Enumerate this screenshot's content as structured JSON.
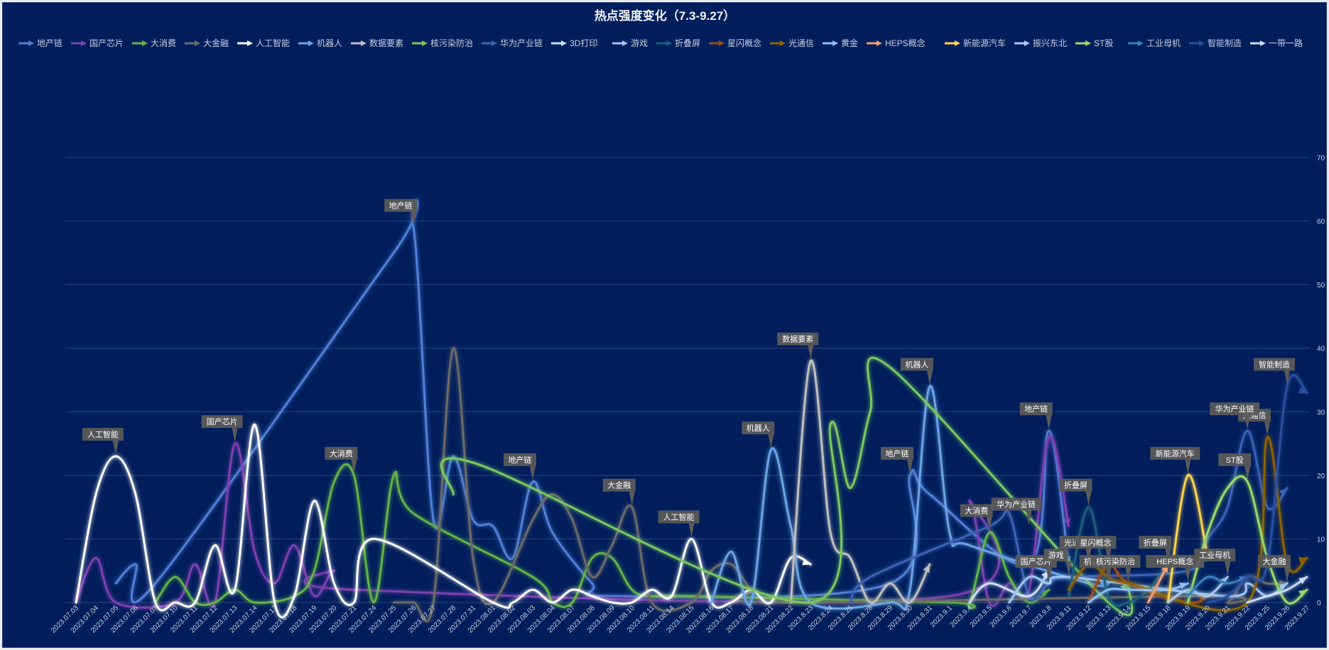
{
  "chart_data": {
    "type": "line",
    "title": "热点强度变化（7.3-9.27）",
    "ylim": [
      0,
      70
    ],
    "y_ticks": [
      0,
      10,
      20,
      30,
      40,
      50,
      60,
      70
    ],
    "y_axis_side": "right",
    "grid": "horizontal",
    "legend_position": "top",
    "categories": [
      "2023.07.03",
      "2023.07.04",
      "2023.07.05",
      "2023.07.06",
      "2023.07.07",
      "2023.07.10",
      "2023.07.11",
      "2023.07.12",
      "2023.07.13",
      "2023.07.14",
      "2023.07.17",
      "2023.07.18",
      "2023.07.19",
      "2023.07.20",
      "2023.07.21",
      "2023.07.24",
      "2023.07.25",
      "2023.07.26",
      "2023.07.27",
      "2023.07.28",
      "2023.07.31",
      "2023.08.01",
      "2023.08.02",
      "2023.08.03",
      "2023.08.04",
      "2023.08.07",
      "2023.08.08",
      "2023.08.09",
      "2023.08.10",
      "2023.08.11",
      "2023.08.14",
      "2023.08.15",
      "2023.08.16",
      "2023.08.17",
      "2023.08.18",
      "2023.08.21",
      "2023.08.22",
      "2023.8.23",
      "2023.8.24",
      "2023.8.25",
      "2023.8.28",
      "2023.8.29",
      "2023.8.30",
      "2023.8.31",
      "2023.9.1",
      "2023.9.4",
      "2023.9.5",
      "2023.9.6",
      "2023.9.7",
      "2023.9.8",
      "2023.9.11",
      "2023.9.12",
      "2023.9.13",
      "2023.9.14",
      "2023.9.15",
      "2023.9.18",
      "2023.9.19",
      "2023.9.20",
      "2023.9.21",
      "2023.9.22",
      "2023.9.25",
      "2023.9.26",
      "2023.9.27"
    ],
    "series": [
      {
        "name": "地产链",
        "color": "#4f7fd6",
        "points": [
          [
            2,
            3
          ],
          [
            3,
            6
          ],
          [
            4,
            3
          ],
          [
            16,
            55
          ],
          [
            17,
            59
          ],
          [
            18,
            13
          ],
          [
            19,
            23
          ],
          [
            20,
            13
          ],
          [
            21,
            12
          ],
          [
            22,
            7
          ],
          [
            23,
            19
          ],
          [
            24,
            11
          ],
          [
            26,
            3
          ],
          [
            27,
            1
          ],
          [
            41,
            3
          ],
          [
            42,
            20
          ],
          [
            43,
            17
          ],
          [
            48,
            6
          ],
          [
            49,
            27
          ],
          [
            50,
            6
          ]
        ]
      },
      {
        "name": "国产芯片",
        "color": "#7b3fb0",
        "points": [
          [
            0,
            0
          ],
          [
            1,
            7
          ],
          [
            2,
            0
          ],
          [
            5,
            0
          ],
          [
            6,
            6
          ],
          [
            7,
            0
          ],
          [
            8,
            25
          ],
          [
            9,
            8
          ],
          [
            10,
            3
          ],
          [
            11,
            9
          ],
          [
            12,
            1
          ],
          [
            13,
            5
          ],
          [
            14,
            2
          ],
          [
            44,
            1
          ],
          [
            45,
            16
          ],
          [
            46,
            0
          ],
          [
            47,
            3
          ],
          [
            48,
            2
          ],
          [
            49,
            26
          ],
          [
            50,
            12
          ]
        ]
      },
      {
        "name": "大消费",
        "color": "#62b246",
        "points": [
          [
            4,
            0
          ],
          [
            5,
            4
          ],
          [
            6,
            0
          ],
          [
            7,
            0
          ],
          [
            8,
            2
          ],
          [
            9,
            0
          ],
          [
            11,
            1
          ],
          [
            12,
            5
          ],
          [
            13,
            19
          ],
          [
            14,
            20
          ],
          [
            15,
            0
          ],
          [
            16,
            20
          ],
          [
            17,
            14
          ],
          [
            23,
            4
          ],
          [
            24,
            0
          ],
          [
            25,
            0
          ],
          [
            26,
            7
          ],
          [
            27,
            7
          ],
          [
            28,
            2
          ],
          [
            29,
            1
          ],
          [
            31,
            1
          ],
          [
            44,
            0
          ],
          [
            45,
            0
          ],
          [
            46,
            11
          ],
          [
            47,
            4
          ],
          [
            48,
            0
          ],
          [
            49,
            2
          ]
        ]
      },
      {
        "name": "大金融",
        "color": "#6b6b6b",
        "points": [
          [
            16,
            0
          ],
          [
            17,
            0
          ],
          [
            18,
            0
          ],
          [
            19,
            40
          ],
          [
            20,
            7
          ],
          [
            21,
            0
          ],
          [
            23,
            13
          ],
          [
            24,
            17
          ],
          [
            25,
            13
          ],
          [
            26,
            4
          ],
          [
            27,
            9
          ],
          [
            28,
            15
          ],
          [
            29,
            0
          ],
          [
            31,
            0
          ],
          [
            32,
            5
          ],
          [
            33,
            6
          ],
          [
            34,
            2
          ],
          [
            35,
            0
          ],
          [
            57,
            1
          ],
          [
            58,
            0
          ],
          [
            59,
            4
          ],
          [
            60,
            3
          ],
          [
            61,
            3
          ]
        ]
      },
      {
        "name": "人工智能",
        "color": "#ffffff",
        "points": [
          [
            0,
            0
          ],
          [
            1,
            17
          ],
          [
            2,
            23
          ],
          [
            3,
            17
          ],
          [
            4,
            0
          ],
          [
            5,
            0
          ],
          [
            6,
            0
          ],
          [
            7,
            9
          ],
          [
            8,
            2
          ],
          [
            9,
            28
          ],
          [
            10,
            0
          ],
          [
            11,
            1
          ],
          [
            12,
            16
          ],
          [
            13,
            3
          ],
          [
            14,
            0
          ],
          [
            15,
            10
          ],
          [
            21,
            0
          ],
          [
            22,
            0
          ],
          [
            23,
            2
          ],
          [
            24,
            0
          ],
          [
            25,
            2
          ],
          [
            26,
            1
          ],
          [
            27,
            0
          ],
          [
            28,
            0
          ],
          [
            29,
            2
          ],
          [
            30,
            1
          ],
          [
            31,
            10
          ],
          [
            32,
            0
          ],
          [
            33,
            0
          ],
          [
            34,
            2
          ],
          [
            35,
            0
          ],
          [
            36,
            7
          ],
          [
            37,
            6
          ]
        ]
      },
      {
        "name": "机器人",
        "color": "#6aa4e6",
        "points": [
          [
            32,
            0
          ],
          [
            33,
            8
          ],
          [
            34,
            0
          ],
          [
            35,
            24
          ],
          [
            36,
            12
          ],
          [
            37,
            0
          ],
          [
            41,
            0
          ],
          [
            42,
            2
          ],
          [
            43,
            34
          ],
          [
            44,
            11
          ],
          [
            45,
            9
          ],
          [
            51,
            3
          ],
          [
            52,
            3
          ]
        ]
      },
      {
        "name": "数据要素",
        "color": "#bfbfbf",
        "points": [
          [
            36,
            0
          ],
          [
            37,
            38
          ],
          [
            38,
            11
          ],
          [
            39,
            7
          ],
          [
            40,
            0
          ],
          [
            41,
            3
          ],
          [
            42,
            0
          ],
          [
            43,
            6
          ]
        ]
      },
      {
        "name": "核污染防治",
        "color": "#7ac860",
        "points": [
          [
            19,
            17
          ],
          [
            20,
            22
          ],
          [
            37,
            0
          ],
          [
            38,
            28
          ],
          [
            39,
            18
          ],
          [
            40,
            30
          ],
          [
            41,
            37
          ],
          [
            52,
            0
          ],
          [
            53,
            3
          ]
        ]
      },
      {
        "name": "华为产业链",
        "color": "#3a62b4",
        "points": [
          [
            39,
            0
          ],
          [
            40,
            4
          ],
          [
            46,
            12
          ],
          [
            47,
            14
          ],
          [
            48,
            1
          ],
          [
            49,
            3
          ],
          [
            50,
            4
          ],
          [
            56,
            5
          ],
          [
            57,
            10
          ],
          [
            58,
            15
          ],
          [
            59,
            27
          ],
          [
            60,
            15
          ],
          [
            61,
            18
          ]
        ]
      },
      {
        "name": "3D打印",
        "color": "#cde0ff",
        "points": [
          [
            45,
            0
          ],
          [
            46,
            3
          ],
          [
            48,
            1
          ],
          [
            49,
            5
          ]
        ]
      },
      {
        "name": "游戏",
        "color": "#9fc7f3",
        "points": [
          [
            47,
            0
          ],
          [
            48,
            4
          ],
          [
            49,
            3
          ],
          [
            50,
            4
          ],
          [
            58,
            1
          ],
          [
            59,
            3
          ],
          [
            60,
            1
          ],
          [
            61,
            3
          ]
        ]
      },
      {
        "name": "折叠屏",
        "color": "#1c5f7a",
        "points": [
          [
            50,
            1
          ],
          [
            51,
            15
          ],
          [
            52,
            1
          ],
          [
            53,
            0
          ],
          [
            54,
            2
          ],
          [
            55,
            6
          ]
        ]
      },
      {
        "name": "星闪概念",
        "color": "#9a4e16",
        "points": [
          [
            51,
            0
          ],
          [
            52,
            6
          ],
          [
            53,
            3
          ],
          [
            56,
            0
          ],
          [
            57,
            1
          ]
        ]
      },
      {
        "name": "光通信",
        "color": "#8c6200",
        "points": [
          [
            50,
            2
          ],
          [
            51,
            6
          ],
          [
            52,
            4
          ],
          [
            53,
            3
          ],
          [
            59,
            0
          ],
          [
            60,
            26
          ],
          [
            61,
            6
          ],
          [
            62,
            7
          ]
        ]
      },
      {
        "name": "黄金",
        "color": "#8fbff4",
        "points": [
          [
            51,
            0
          ],
          [
            52,
            2
          ],
          [
            53,
            2
          ],
          [
            55,
            2
          ],
          [
            56,
            3
          ]
        ]
      },
      {
        "name": "HEPS概念",
        "color": "#f0a070",
        "points": [
          [
            54,
            0
          ],
          [
            55,
            6
          ]
        ]
      },
      {
        "name": "新能源汽车",
        "color": "#ffd24d",
        "points": [
          [
            55,
            0
          ],
          [
            56,
            20
          ],
          [
            57,
            7
          ]
        ]
      },
      {
        "name": "振兴东北",
        "color": "#a8cbf0",
        "points": [
          [
            55,
            0
          ],
          [
            56,
            2
          ],
          [
            57,
            1
          ],
          [
            58,
            4
          ]
        ]
      },
      {
        "name": "ST股",
        "color": "#9ad86a",
        "points": [
          [
            56,
            0
          ],
          [
            57,
            11
          ],
          [
            58,
            18
          ],
          [
            59,
            19
          ],
          [
            60,
            7
          ],
          [
            61,
            0
          ],
          [
            62,
            2
          ]
        ]
      },
      {
        "name": "工业母机",
        "color": "#3a7fc0",
        "points": [
          [
            56,
            1
          ],
          [
            57,
            4
          ],
          [
            58,
            3
          ],
          [
            59,
            4
          ]
        ]
      },
      {
        "name": "智能制造",
        "color": "#2b4fa0",
        "points": [
          [
            57,
            0
          ],
          [
            58,
            1
          ],
          [
            59,
            4
          ],
          [
            60,
            6
          ],
          [
            61,
            34
          ],
          [
            62,
            33
          ]
        ]
      },
      {
        "name": "一带一路",
        "color": "#c8dcf5",
        "points": [
          [
            59,
            0
          ],
          [
            60,
            1
          ],
          [
            61,
            2
          ],
          [
            62,
            4
          ]
        ]
      }
    ],
    "annotations": [
      {
        "text": "人工智能",
        "x": 2,
        "y": 23
      },
      {
        "text": "国产芯片",
        "x": 8,
        "y": 25
      },
      {
        "text": "大消费",
        "x": 14,
        "y": 20
      },
      {
        "text": "地产链",
        "x": 17,
        "y": 59
      },
      {
        "text": "地产链",
        "x": 23,
        "y": 19
      },
      {
        "text": "大金融",
        "x": 28,
        "y": 15
      },
      {
        "text": "人工智能",
        "x": 31,
        "y": 10
      },
      {
        "text": "机器人",
        "x": 35,
        "y": 24
      },
      {
        "text": "数据要素",
        "x": 37,
        "y": 38
      },
      {
        "text": "地产链",
        "x": 42,
        "y": 20
      },
      {
        "text": "机器人",
        "x": 43,
        "y": 34
      },
      {
        "text": "大消费",
        "x": 46,
        "y": 11
      },
      {
        "text": "地产链",
        "x": 49,
        "y": 27
      },
      {
        "text": "华为产业链",
        "x": 48,
        "y": 12
      },
      {
        "text": "国产芯片",
        "x": 49,
        "y": 3
      },
      {
        "text": "游戏",
        "x": 50,
        "y": 4
      },
      {
        "text": "光通信",
        "x": 51,
        "y": 6
      },
      {
        "text": "折叠屏",
        "x": 51,
        "y": 15
      },
      {
        "text": "机器人",
        "x": 52,
        "y": 3
      },
      {
        "text": "星闪概念",
        "x": 52,
        "y": 6
      },
      {
        "text": "核污染防治",
        "x": 53,
        "y": 3
      },
      {
        "text": "折叠屏",
        "x": 55,
        "y": 6
      },
      {
        "text": "HEPS概念",
        "x": 56,
        "y": 3
      },
      {
        "text": "新能源汽车",
        "x": 56,
        "y": 20
      },
      {
        "text": "工业母机",
        "x": 58,
        "y": 4
      },
      {
        "text": "ST股",
        "x": 59,
        "y": 19
      },
      {
        "text": "光通信",
        "x": 60,
        "y": 26
      },
      {
        "text": "华为产业链",
        "x": 59,
        "y": 27
      },
      {
        "text": "大金融",
        "x": 61,
        "y": 3
      },
      {
        "text": "智能制造",
        "x": 61,
        "y": 34
      }
    ]
  }
}
